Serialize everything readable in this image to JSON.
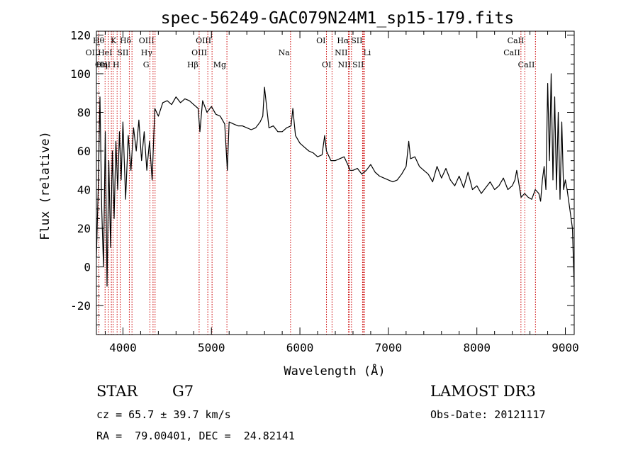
{
  "chart_data": {
    "type": "line",
    "title": "spec-56249-GAC079N24M1_sp15-179.fits",
    "xlabel": "Wavelength (Å)",
    "ylabel": "Flux (relative)",
    "xlim": [
      3700,
      9100
    ],
    "ylim": [
      -35,
      122
    ],
    "x_ticks": [
      4000,
      5000,
      6000,
      7000,
      8000,
      9000
    ],
    "y_ticks": [
      -20,
      0,
      20,
      40,
      60,
      80,
      100,
      120
    ],
    "grid": false,
    "line_color": "#000000",
    "marker_color": "#cc0000",
    "series": [
      {
        "x": [
          3700,
          3720,
          3740,
          3760,
          3780,
          3800,
          3820,
          3840,
          3860,
          3880,
          3900,
          3920,
          3940,
          3960,
          3980,
          4000,
          4030,
          4060,
          4090,
          4120,
          4150,
          4180,
          4210,
          4240,
          4270,
          4300,
          4330,
          4360,
          4400,
          4450,
          4500,
          4550,
          4600,
          4650,
          4700,
          4750,
          4800,
          4850,
          4870,
          4900,
          4950,
          5000,
          5050,
          5100,
          5150,
          5180,
          5200,
          5250,
          5300,
          5350,
          5400,
          5450,
          5500,
          5550,
          5580,
          5600,
          5650,
          5700,
          5750,
          5800,
          5850,
          5900,
          5920,
          5950,
          6000,
          6050,
          6100,
          6150,
          6200,
          6250,
          6280,
          6300,
          6350,
          6400,
          6450,
          6500,
          6550,
          6563,
          6600,
          6650,
          6700,
          6750,
          6800,
          6850,
          6900,
          6950,
          7000,
          7050,
          7100,
          7150,
          7200,
          7230,
          7250,
          7300,
          7350,
          7400,
          7450,
          7500,
          7550,
          7600,
          7650,
          7700,
          7750,
          7800,
          7850,
          7900,
          7950,
          8000,
          8050,
          8100,
          8150,
          8200,
          8250,
          8300,
          8350,
          8400,
          8430,
          8450,
          8500,
          8540,
          8580,
          8620,
          8660,
          8700,
          8720,
          8740,
          8760,
          8780,
          8800,
          8820,
          8840,
          8860,
          8880,
          8900,
          8920,
          8940,
          8960,
          8980,
          9000,
          9020,
          9050,
          9080,
          9100
        ],
        "y": [
          5,
          40,
          88,
          30,
          0,
          70,
          -10,
          55,
          10,
          60,
          25,
          65,
          40,
          70,
          45,
          75,
          35,
          68,
          50,
          72,
          60,
          76,
          55,
          70,
          50,
          65,
          45,
          82,
          78,
          85,
          86,
          84,
          88,
          85,
          87,
          86,
          84,
          82,
          70,
          86,
          80,
          83,
          79,
          78,
          74,
          50,
          75,
          74,
          73,
          73,
          72,
          71,
          72,
          75,
          78,
          93,
          72,
          73,
          70,
          70,
          72,
          73,
          82,
          68,
          64,
          62,
          60,
          59,
          57,
          58,
          68,
          60,
          55,
          55,
          56,
          57,
          52,
          50,
          50,
          51,
          48,
          50,
          53,
          49,
          47,
          46,
          45,
          44,
          45,
          48,
          52,
          65,
          56,
          57,
          52,
          50,
          48,
          44,
          52,
          46,
          51,
          45,
          42,
          47,
          41,
          49,
          40,
          42,
          38,
          41,
          44,
          40,
          42,
          46,
          40,
          42,
          45,
          50,
          36,
          38,
          36,
          35,
          40,
          38,
          34,
          45,
          52,
          40,
          95,
          55,
          100,
          45,
          88,
          40,
          80,
          35,
          75,
          40,
          45,
          40,
          30,
          20,
          -10
        ]
      }
    ],
    "line_markers": [
      {
        "label": "Hθ",
        "x": 3798,
        "row": 1,
        "side": "left"
      },
      {
        "label": "OII",
        "x": 3727,
        "row": 2,
        "side": "left"
      },
      {
        "label": "OIII",
        "x": 3869,
        "row": 3,
        "side": "left"
      },
      {
        "label": "K",
        "x": 3934,
        "row": 1,
        "side": "left"
      },
      {
        "label": "HeI",
        "x": 3889,
        "row": 2,
        "side": "left"
      },
      {
        "label": "Hη",
        "x": 3835,
        "row": 3,
        "side": "left"
      },
      {
        "label": "Hδ",
        "x": 4102,
        "row": 1,
        "side": "left"
      },
      {
        "label": "SII",
        "x": 4072,
        "row": 2,
        "side": "left"
      },
      {
        "label": "H",
        "x": 3969,
        "row": 3,
        "side": "left"
      },
      {
        "label": "OIII",
        "x": 4363,
        "row": 1,
        "side": "left"
      },
      {
        "label": "Hγ",
        "x": 4340,
        "row": 2,
        "side": "left"
      },
      {
        "label": "G",
        "x": 4305,
        "row": 3,
        "side": "left"
      },
      {
        "label": "OIII",
        "x": 5007,
        "row": 1,
        "side": "left"
      },
      {
        "label": "OIII",
        "x": 4959,
        "row": 2,
        "side": "left"
      },
      {
        "label": "Hβ",
        "x": 4861,
        "row": 3,
        "side": "left"
      },
      {
        "label": "Mg",
        "x": 5175,
        "row": 3,
        "side": "left"
      },
      {
        "label": "Na",
        "x": 5894,
        "row": 2,
        "side": "left"
      },
      {
        "label": "OI",
        "x": 6300,
        "row": 1,
        "side": "left"
      },
      {
        "label": "OI",
        "x": 6363,
        "row": 3,
        "side": "left"
      },
      {
        "label": "Hα",
        "x": 6563,
        "row": 1,
        "side": "left"
      },
      {
        "label": "SII",
        "x": 6716,
        "row": 1,
        "side": "left"
      },
      {
        "label": "NII",
        "x": 6548,
        "row": 2,
        "side": "left"
      },
      {
        "label": "Li",
        "x": 6708,
        "row": 2,
        "side": "right"
      },
      {
        "label": "NII",
        "x": 6583,
        "row": 3,
        "side": "left"
      },
      {
        "label": "SII",
        "x": 6731,
        "row": 3,
        "side": "left"
      },
      {
        "label": "CaII",
        "x": 8542,
        "row": 1,
        "side": "left"
      },
      {
        "label": "CaII",
        "x": 8498,
        "row": 2,
        "side": "left"
      },
      {
        "label": "CaII",
        "x": 8662,
        "row": 3,
        "side": "left"
      }
    ]
  },
  "info": {
    "object_class": "STAR",
    "subclass": "G7",
    "survey": "LAMOST DR3",
    "redshift": "cz = 65.7 ± 39.7 km/s",
    "obs_date": "Obs-Date: 20121117",
    "coords": "RA =  79.00401, DEC =  24.82141"
  }
}
